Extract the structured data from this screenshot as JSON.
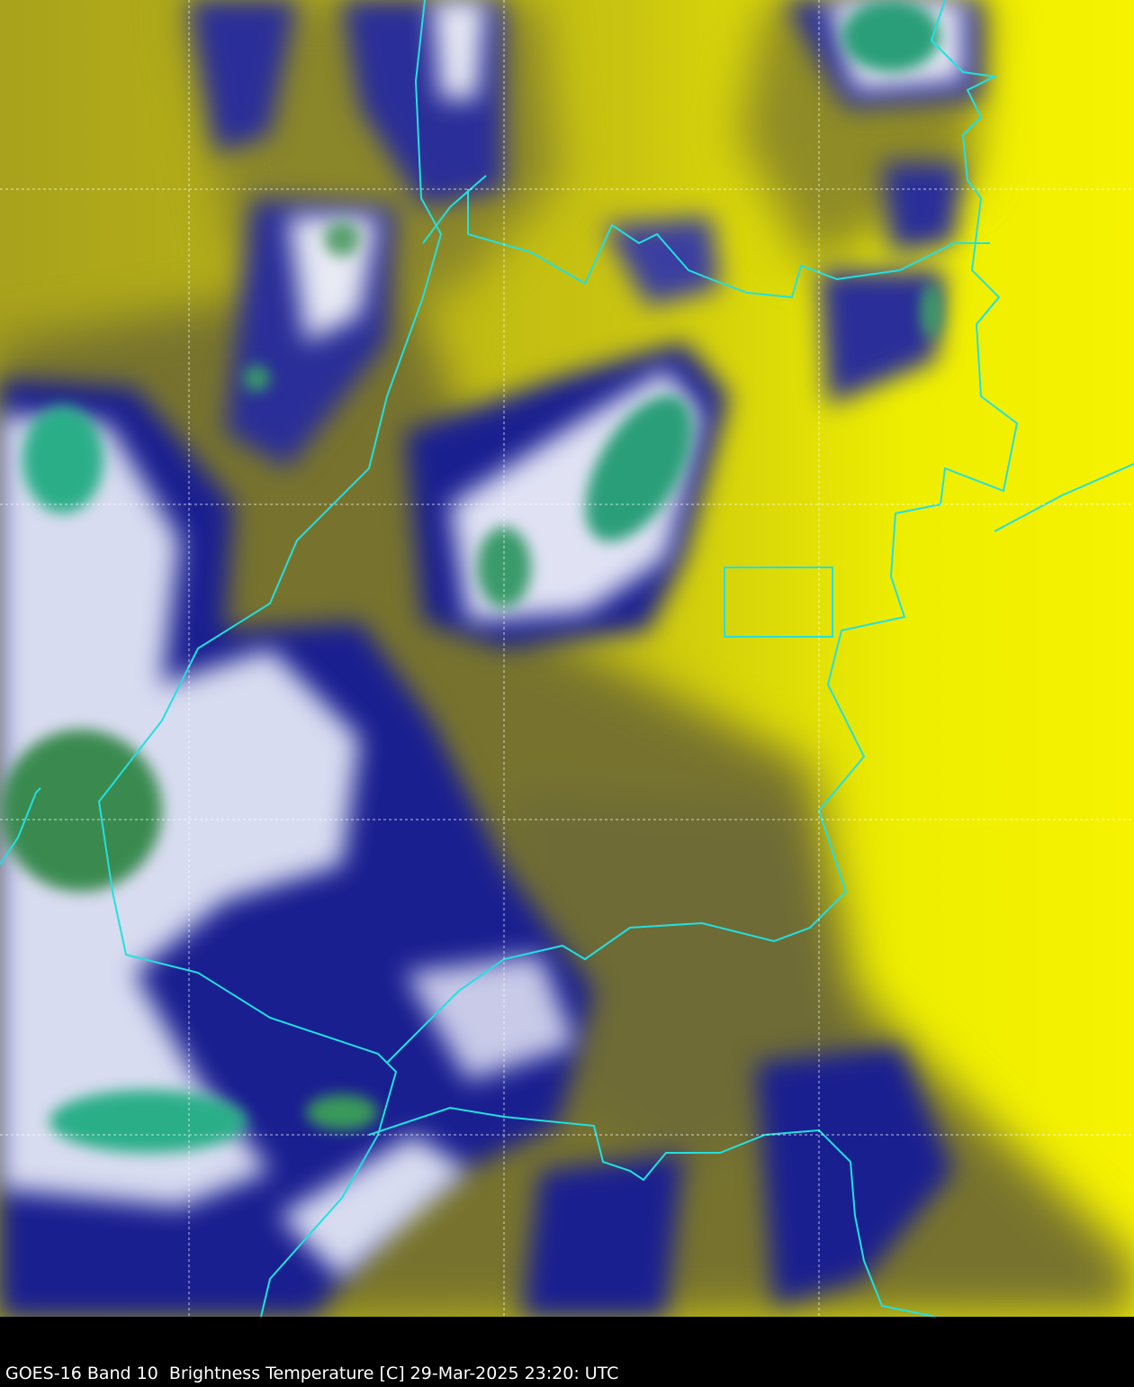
{
  "caption": "GOES-16 Band 10  Brightness Temperature [C] 29-Mar-2025 23:20: UTC",
  "colors": {
    "warm": "#f2f200",
    "mid": "#8f8a2a",
    "cold": "#141c8c",
    "colder": "#ffffff",
    "coldest": "#2aa880",
    "borders": "#22e0e0",
    "grid": "#ffffff",
    "background": "#000000"
  }
}
